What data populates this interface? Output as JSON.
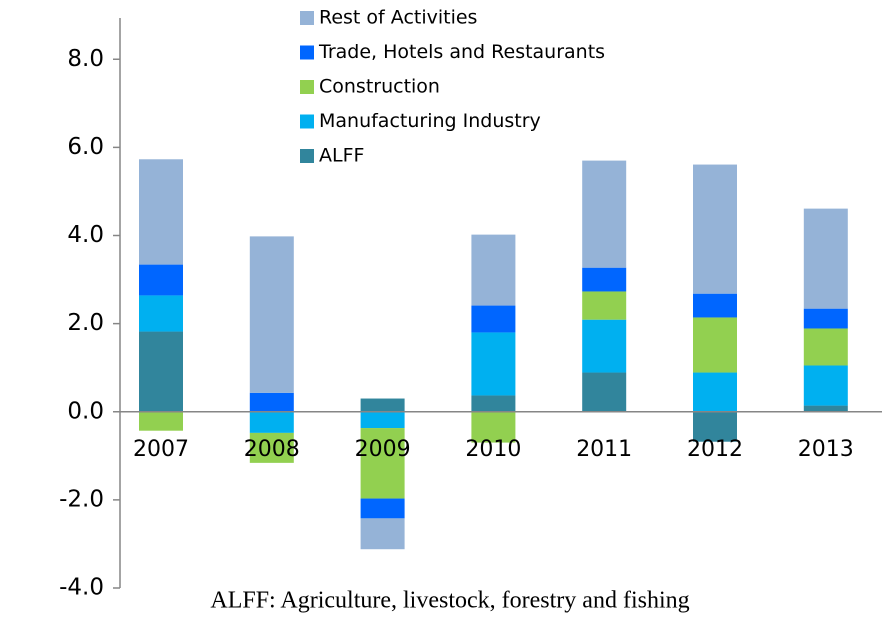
{
  "chart_data": {
    "type": "stacked_bar",
    "categories": [
      "2007",
      "2008",
      "2009",
      "2010",
      "2011",
      "2012",
      "2013"
    ],
    "series": [
      {
        "name": "ALFF",
        "color": "#31859c",
        "values": [
          1.82,
          0,
          0.3,
          0.37,
          0.89,
          -0.68,
          0.14
        ]
      },
      {
        "name": "Manufacturing Industry",
        "color": "#00b0f0",
        "values": [
          0.82,
          -0.48,
          -0.37,
          1.43,
          1.2,
          0.89,
          0.91
        ]
      },
      {
        "name": "Construction",
        "color": "#92d050",
        "values": [
          -0.43,
          -0.68,
          -1.6,
          -0.7,
          0.64,
          1.25,
          0.84
        ]
      },
      {
        "name": "Trade, Hotels and Restaurants",
        "color": "#0066ff",
        "values": [
          0.7,
          0.43,
          -0.45,
          0.61,
          0.54,
          0.54,
          0.45
        ]
      },
      {
        "name": "Rest of Activities",
        "color": "#95b3d7",
        "values": [
          2.39,
          3.55,
          -0.7,
          1.61,
          2.43,
          2.93,
          2.27
        ]
      }
    ],
    "ylim": [
      -4,
      8.8
    ],
    "yticks": [
      {
        "value": -4,
        "label": "-4.0"
      },
      {
        "value": -2,
        "label": "-2.0"
      },
      {
        "value": 0,
        "label": "0.0"
      },
      {
        "value": 2,
        "label": "2.0"
      },
      {
        "value": 4,
        "label": "4.0"
      },
      {
        "value": 6,
        "label": "6.0"
      },
      {
        "value": 8,
        "label": "8.0"
      }
    ],
    "legend": "top",
    "note": "ALFF: Agriculture, livestock, forestry and fishing"
  }
}
